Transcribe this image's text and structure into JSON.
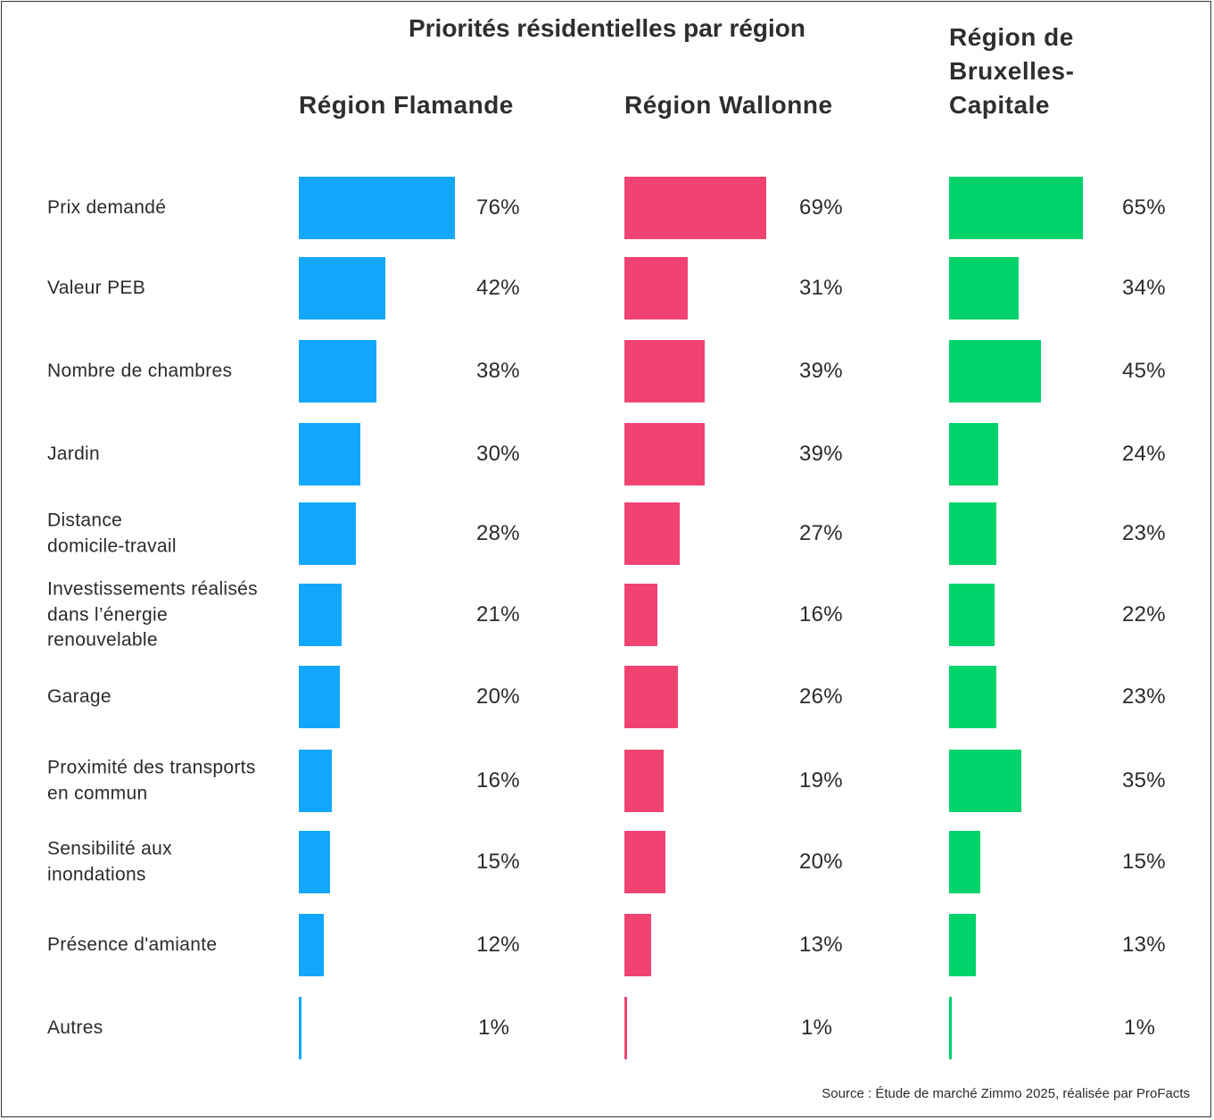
{
  "title": "Priorités résidentielles par région",
  "source": "Source : Étude de marché Zimmo 2025, réalisée par ProFacts",
  "chart_data": {
    "type": "bar",
    "orientation": "horizontal",
    "categories": [
      "Prix demandé",
      "Valeur PEB",
      "Nombre de chambres",
      "Jardin",
      "Distance\ndomicile-travail",
      "Investissements réalisés\ndans l’énergie\nrenouvelable",
      "Garage",
      "Proximité des transports\nen commun",
      "Sensibilité aux\ninondations",
      "Présence d'amiante",
      "Autres"
    ],
    "series": [
      {
        "name": "Région Flamande",
        "color": "#12a7fb",
        "values": [
          76,
          42,
          38,
          30,
          28,
          21,
          20,
          16,
          15,
          12,
          1
        ],
        "labels": [
          "76%",
          "42%",
          "38%",
          "30%",
          "28%",
          "21%",
          "20%",
          "16%",
          "15%",
          "12%",
          "1%"
        ]
      },
      {
        "name": "Région Wallonne",
        "color": "#f04372",
        "values": [
          69,
          31,
          39,
          39,
          27,
          16,
          26,
          19,
          20,
          13,
          1
        ],
        "labels": [
          "69%",
          "31%",
          "39%",
          "39%",
          "27%",
          "16%",
          "26%",
          "19%",
          "20%",
          "13%",
          "1%"
        ]
      },
      {
        "name": "Région de\nBruxelles-\nCapitale",
        "color": "#00d36a",
        "values": [
          65,
          34,
          45,
          24,
          23,
          22,
          23,
          35,
          15,
          13,
          1
        ],
        "labels": [
          "65%",
          "34%",
          "45%",
          "24%",
          "23%",
          "22%",
          "23%",
          "35%",
          "15%",
          "13%",
          "1%"
        ]
      }
    ],
    "xlim": [
      0,
      100
    ],
    "grid": false,
    "legend": "none"
  }
}
